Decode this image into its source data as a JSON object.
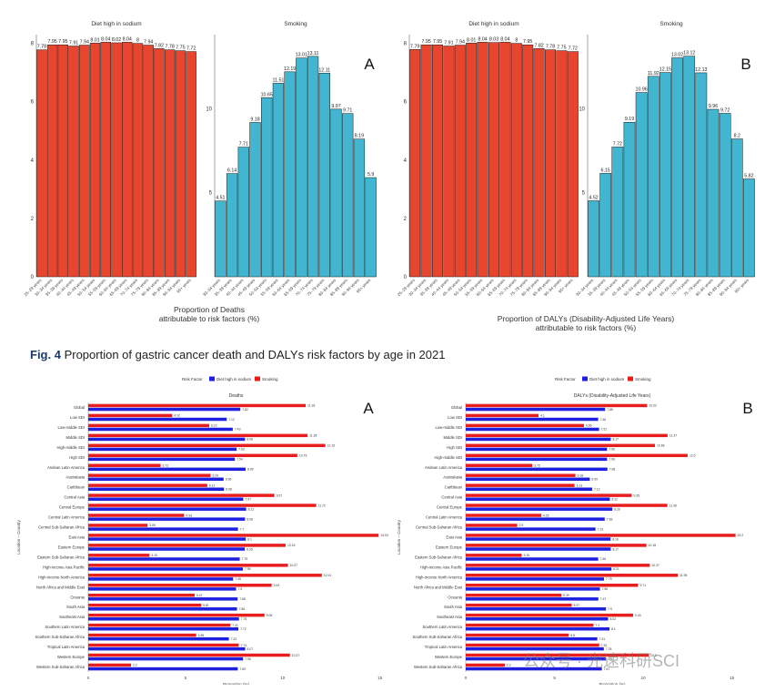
{
  "caption": {
    "prefix": "Fig. 4",
    "text": "Proportion of gastric cancer death and DALYs risk factors by age in 2021"
  },
  "watermark": "公众号 · 光速科研SCI",
  "colors": {
    "sodium": "#e8452f",
    "smoking": "#42b6d0",
    "blue": "#1f1fe0",
    "red": "#e81e1e"
  },
  "chart_data": [
    {
      "id": "A-top",
      "type": "bar",
      "panel_letter": "A",
      "xlabel": "Proportion of Deaths\nattributable to risk factors (%)",
      "facets": [
        {
          "title": "Diet high in sodium",
          "categories": [
            "25–29 years",
            "30–34 years",
            "35–39 years",
            "40–44 years",
            "45–49 years",
            "50–54 years",
            "55–59 years",
            "60–64 years",
            "65–69 years",
            "70–74 years",
            "75–79 years",
            "80–84 years",
            "85–89 years",
            "90–94 years",
            "95+ years"
          ],
          "values": [
            7.78,
            7.95,
            7.95,
            7.91,
            7.94,
            8.01,
            8.04,
            8.02,
            8.04,
            8,
            7.94,
            7.82,
            7.78,
            7.75,
            7.72
          ],
          "ylim": [
            0,
            8.3
          ],
          "yticks": [
            0,
            2,
            4,
            6,
            8
          ]
        },
        {
          "title": "Smoking",
          "categories": [
            "30–34 years",
            "35–39 years",
            "40–44 years",
            "45–49 years",
            "50–54 years",
            "55–59 years",
            "60–64 years",
            "65–69 years",
            "70–74 years",
            "75–79 years",
            "80–84 years",
            "85–89 years",
            "90–94 years",
            "95+ years"
          ],
          "values": [
            4.51,
            6.14,
            7.71,
            9.18,
            10.65,
            11.51,
            12.19,
            13.01,
            13.11,
            12.11,
            9.97,
            9.71,
            8.19,
            5.9
          ],
          "ylim": [
            0,
            14.4
          ],
          "yticks": [
            5,
            10
          ]
        }
      ]
    },
    {
      "id": "B-top",
      "type": "bar",
      "panel_letter": "B",
      "xlabel": "Proportion of DALYs (Disability-Adjusted Life Years)\nattributable to risk factors (%)",
      "facets": [
        {
          "title": "Diet high in sodium",
          "categories": [
            "25–29 years",
            "30–34 years",
            "35–39 years",
            "40–44 years",
            "45–49 years",
            "50–54 years",
            "55–59 years",
            "60–64 years",
            "65–69 years",
            "70–74 years",
            "75–79 years",
            "80–84 years",
            "85–89 years",
            "90–94 years",
            "95+ years"
          ],
          "values": [
            7.79,
            7.95,
            7.95,
            7.91,
            7.94,
            8.01,
            8.04,
            8.03,
            8.04,
            8,
            7.95,
            7.82,
            7.78,
            7.75,
            7.72
          ],
          "ylim": [
            0,
            8.3
          ],
          "yticks": [
            0,
            2,
            4,
            6,
            8
          ]
        },
        {
          "title": "Smoking",
          "categories": [
            "30–34 years",
            "35–39 years",
            "40–44 years",
            "45–49 years",
            "50–54 years",
            "55–59 years",
            "60–64 years",
            "65–69 years",
            "70–74 years",
            "75–79 years",
            "80–84 years",
            "85–89 years",
            "90–94 years",
            "95+ years"
          ],
          "values": [
            4.52,
            6.15,
            7.72,
            9.19,
            10.96,
            11.92,
            12.15,
            13.02,
            13.12,
            12.13,
            9.96,
            9.72,
            8.2,
            5.82
          ],
          "ylim": [
            0,
            14.4
          ],
          "yticks": [
            5,
            10
          ]
        }
      ]
    },
    {
      "id": "A-bottom",
      "type": "bar",
      "orientation": "horizontal",
      "panel_letter": "A",
      "title": "Deaths",
      "xlabel": "Proportion (%)",
      "ylabel": "Location – Country",
      "legend": {
        "title": "Risk Factor",
        "items": [
          "Diet high in sodium",
          "Smoking"
        ]
      },
      "xlim": [
        0,
        15.2
      ],
      "xticks": [
        0,
        5,
        10,
        15
      ],
      "categories": [
        "Global",
        "Low SDI",
        "Low-middle SDI",
        "Middle SDI",
        "High-middle SDI",
        "High SDI",
        "Andean Latin America",
        "Australasia",
        "Caribbean",
        "Central Asia",
        "Central Europe",
        "Central Latin America",
        "Central Sub-Saharan Africa",
        "East Asia",
        "Eastern Europe",
        "Eastern Sub-Saharan Africa",
        "High-income Asia Pacific",
        "High-income North America",
        "North Africa and Middle East",
        "Oceania",
        "South Asia",
        "Southeast Asia",
        "Southern Latin America",
        "Southern Sub-Saharan Africa",
        "Tropical Latin America",
        "Western Europe",
        "Western Sub-Saharan Africa"
      ],
      "series": [
        {
          "name": "Diet high in sodium",
          "values": [
            7.82,
            7.12,
            7.43,
            8.06,
            7.63,
            7.54,
            8.09,
            6.96,
            6.98,
            7.97,
            8.12,
            8.06,
            7.7,
            8.1,
            8.05,
            7.79,
            7.95,
            7.45,
            7.6,
            7.68,
            7.65,
            7.75,
            7.72,
            7.23,
            8.07,
            7.96,
            7.69
          ]
        },
        {
          "name": "Smoking",
          "values": [
            11.18,
            4.32,
            6.22,
            11.28,
            12.19,
            10.75,
            3.72,
            6.29,
            6.12,
            9.57,
            11.72,
            4.93,
            3.05,
            14.93,
            10.15,
            3.15,
            10.27,
            12.01,
            9.43,
            5.47,
            5.81,
            9.06,
            7.31,
            5.55,
            7.74,
            10.37,
            2.2
          ]
        }
      ]
    },
    {
      "id": "B-bottom",
      "type": "bar",
      "orientation": "horizontal",
      "panel_letter": "B",
      "title": "DALYs (Disability-Adjusted Life Years)",
      "xlabel": "Proportion (%)",
      "ylabel": "Location – Country",
      "legend": {
        "title": "Risk Factor",
        "items": [
          "Diet high in sodium",
          "Smoking"
        ]
      },
      "xlim": [
        0,
        16.5
      ],
      "xticks": [
        0,
        5,
        10,
        15
      ],
      "categories": [
        "Global",
        "Low SDI",
        "Low-middle SDI",
        "Middle SDI",
        "High SDI",
        "High-middle SDI",
        "Andean Latin America",
        "Australasia",
        "Caribbean",
        "Central Asia",
        "Central Europe",
        "Central Latin America",
        "Central Sub-Saharan Africa",
        "East Asia",
        "Eastern Europe",
        "Eastern Sub-Saharan Africa",
        "High-income Asia Pacific",
        "High-income North America",
        "North Africa and Middle East",
        "Oceania",
        "South Asia",
        "Southeast Asia",
        "Southern Latin America",
        "Southern Sub-Saharan Africa",
        "Tropical Latin America",
        "Western Europe",
        "Western Sub-Saharan Africa"
      ],
      "series": [
        {
          "name": "Diet high in sodium",
          "values": [
            7.85,
            7.46,
            7.51,
            8.17,
            7.96,
            7.96,
            7.98,
            6.99,
            7.12,
            8.12,
            8.26,
            7.83,
            7.31,
            8.16,
            8.17,
            7.46,
            8.21,
            7.79,
            7.56,
            7.47,
            7.9,
            8.02,
            8.1,
            7.41,
            7.78,
            7.9,
            7.67
          ]
        },
        {
          "name": "Smoking",
          "values": [
            10.22,
            4.1,
            6.66,
            11.37,
            10.66,
            12.5,
            3.75,
            6.18,
            6.13,
            9.35,
            11.36,
            4.25,
            2.9,
            15.2,
            10.18,
            3.15,
            10.37,
            11.95,
            9.71,
            5.39,
            5.97,
            9.43,
            7.2,
            5.8,
            7.52,
            10.3,
            2.2
          ]
        }
      ]
    }
  ]
}
